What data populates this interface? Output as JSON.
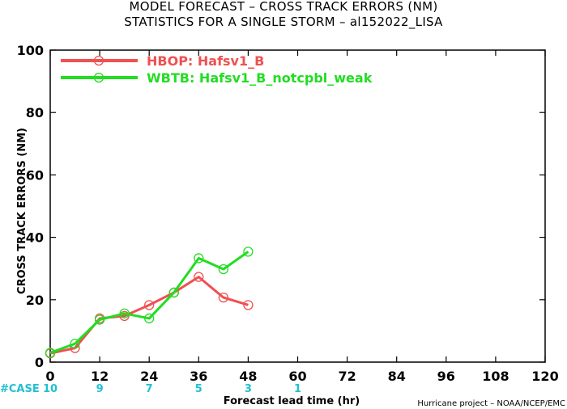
{
  "header": {
    "title_line1": "MODEL FORECAST – CROSS TRACK ERRORS (NM)",
    "title_line2": "STATISTICS FOR A SINGLE STORM – al152022_LISA"
  },
  "footer": {
    "credit": "Hurricane project – NOAA/NCEP/EMC"
  },
  "chart_data": {
    "type": "line",
    "title": "MODEL FORECAST – CROSS TRACK ERRORS (NM)",
    "subtitle": "STATISTICS FOR A SINGLE STORM – al152022_LISA",
    "xlabel": "Forecast lead time (hr)",
    "ylabel": "CROSS TRACK ERRORS (NM)",
    "xlim": [
      0,
      120
    ],
    "ylim": [
      0,
      100
    ],
    "xticks": [
      0,
      12,
      24,
      36,
      48,
      60,
      72,
      84,
      96,
      108,
      120
    ],
    "yticks": [
      0,
      20,
      40,
      60,
      80,
      100
    ],
    "grid": false,
    "legend_position": "top-left",
    "case_label": "#CASE",
    "cases": [
      {
        "x": 0,
        "n": "10"
      },
      {
        "x": 12,
        "n": "9"
      },
      {
        "x": 24,
        "n": "7"
      },
      {
        "x": 36,
        "n": "5"
      },
      {
        "x": 48,
        "n": "3"
      },
      {
        "x": 60,
        "n": "1"
      }
    ],
    "series": [
      {
        "name": "HBOP: Hafsv1_B",
        "color": "#f05050",
        "x": [
          0,
          6,
          12,
          18,
          24,
          30,
          36,
          42,
          48
        ],
        "y": [
          2.8,
          4.5,
          14.0,
          14.8,
          18.3,
          22.3,
          27.3,
          20.7,
          18.3
        ]
      },
      {
        "name": "WBTB: Hafsv1_B_notcpbl_weak",
        "color": "#22dd22",
        "x": [
          0,
          6,
          12,
          18,
          24,
          30,
          36,
          42,
          48
        ],
        "y": [
          3.0,
          5.9,
          13.6,
          15.6,
          14.0,
          22.3,
          33.3,
          29.8,
          35.4
        ]
      }
    ],
    "case_color": "#20c0d0"
  }
}
